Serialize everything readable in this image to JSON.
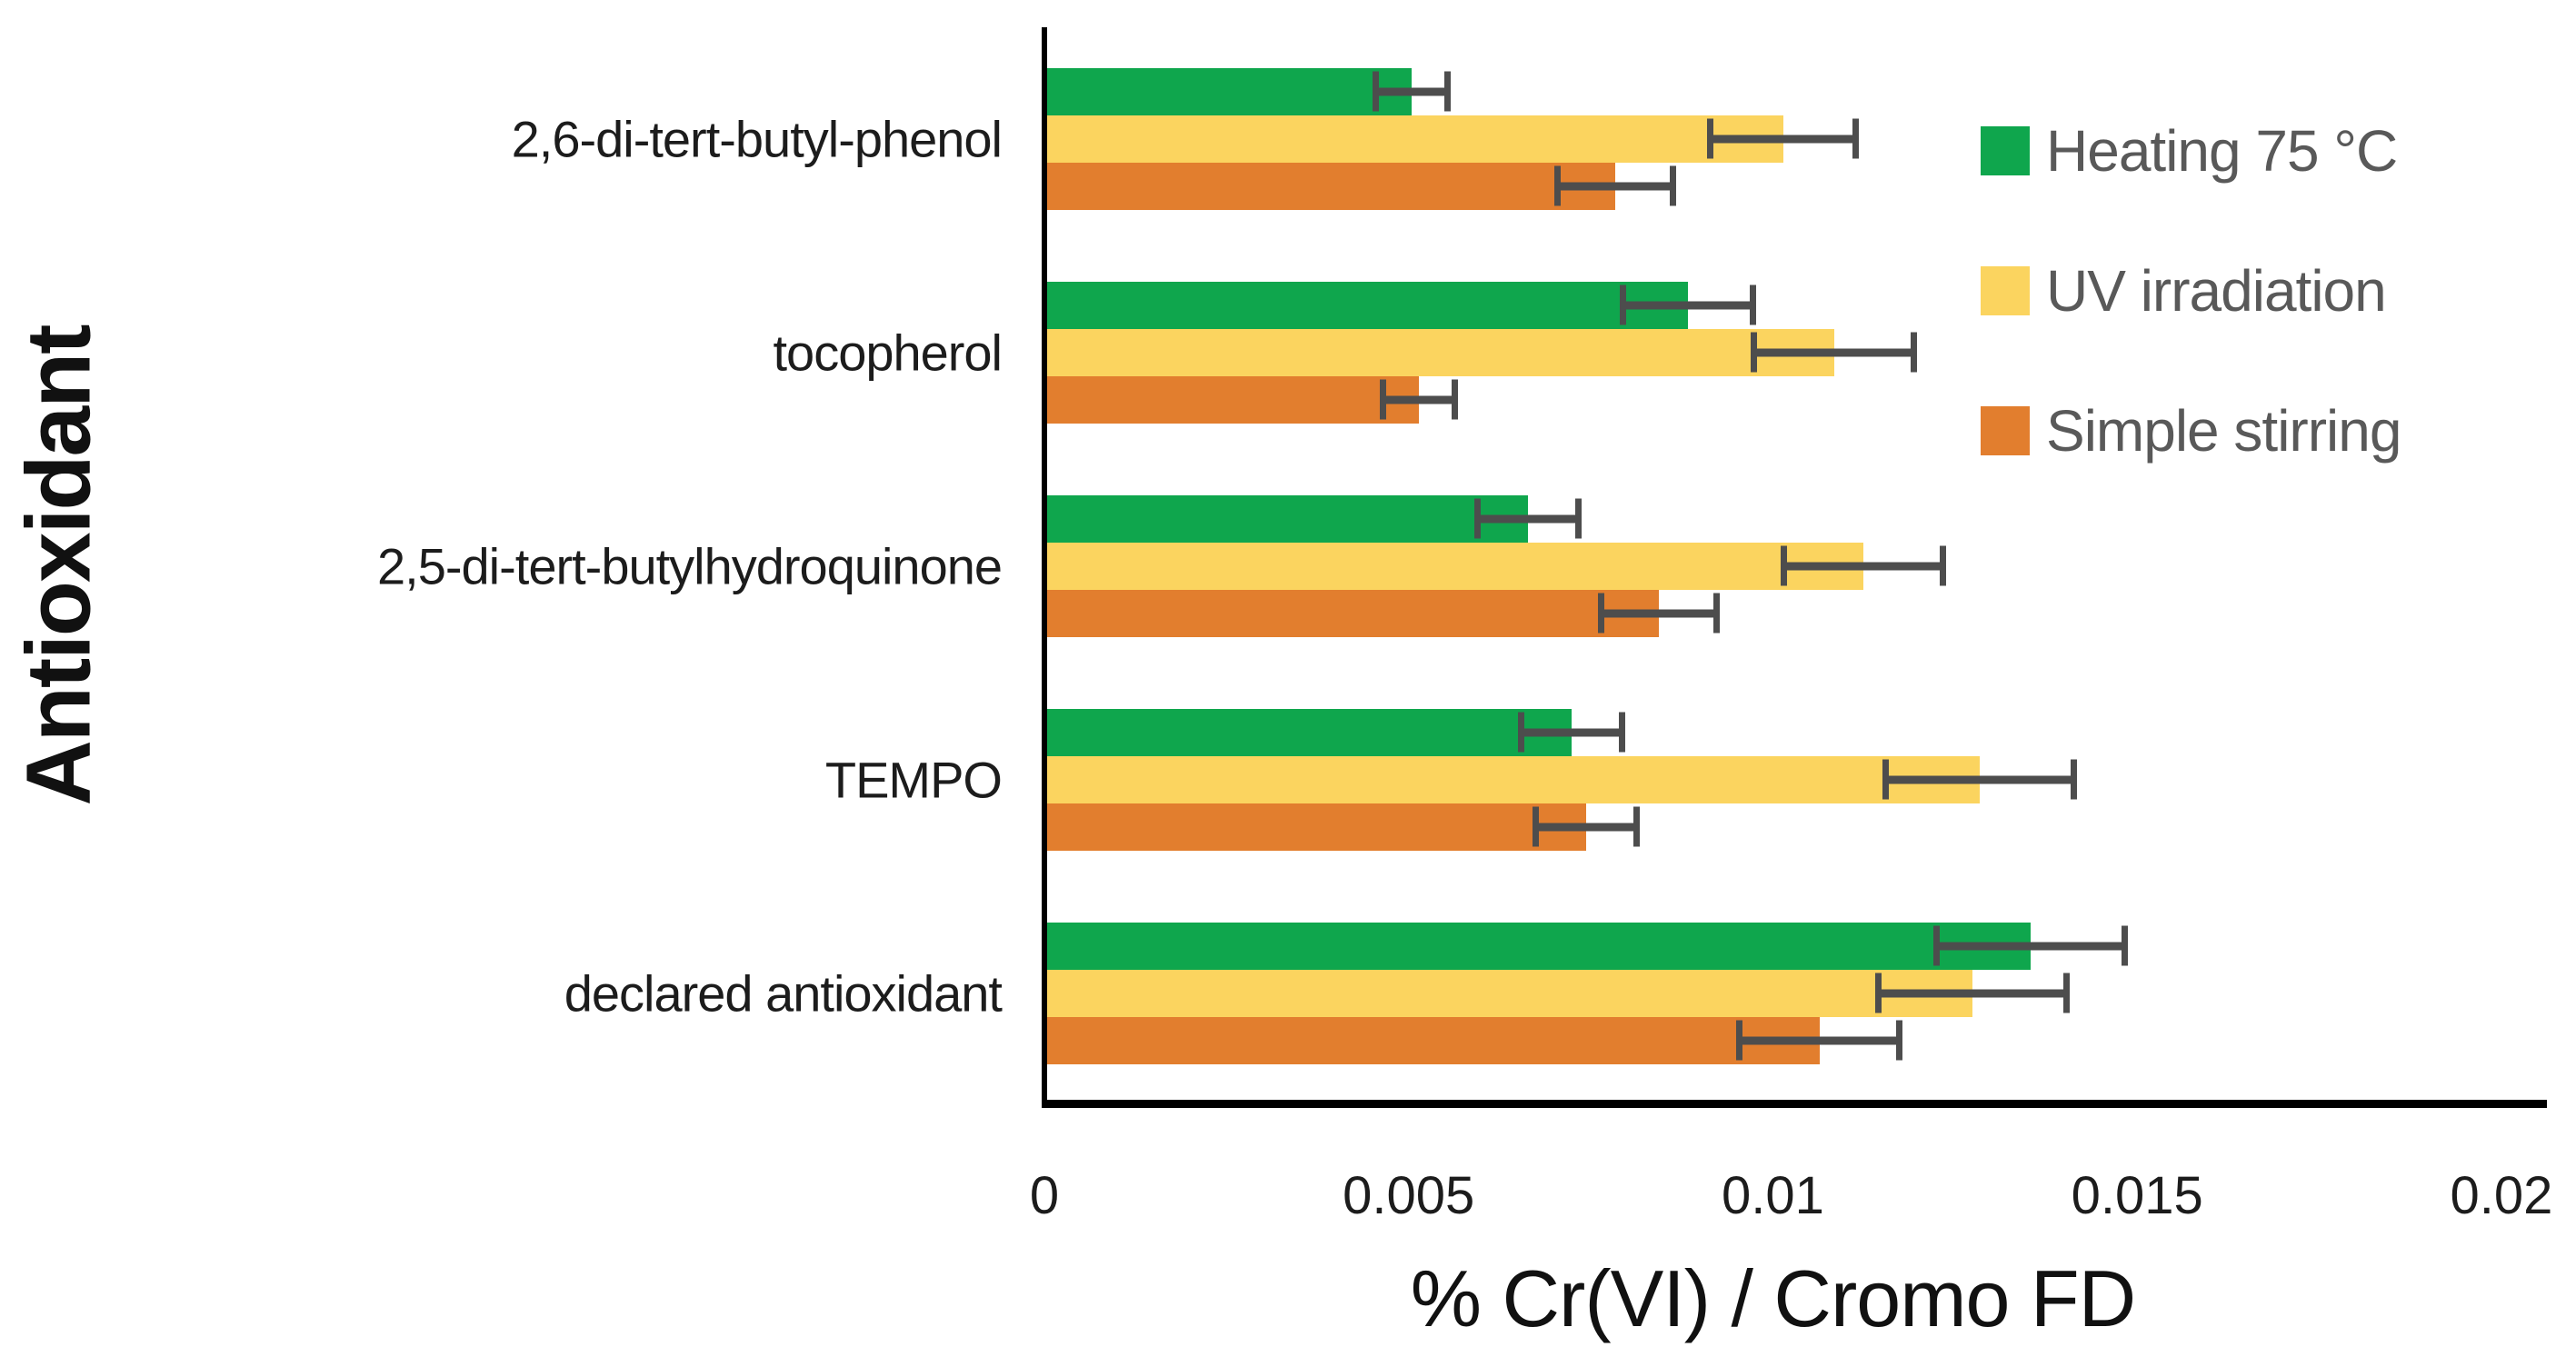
{
  "chart_data": {
    "type": "bar",
    "orientation": "horizontal",
    "xlabel": "% Cr(VI) / Cromo FD",
    "ylabel": "Antioxidant",
    "xlim": [
      0,
      0.02
    ],
    "x_ticks": [
      0,
      0.005,
      0.01,
      0.015,
      0.02
    ],
    "x_tick_labels": [
      "0",
      "0.005",
      "0.01",
      "0.015",
      "0.02"
    ],
    "grid": false,
    "error_bars": true,
    "legend_position": "top-right",
    "categories": [
      "2,6-di-tert-butyl-phenol",
      "tocopherol",
      "2,5-di-tert-butylhydroquinone",
      "TEMPO",
      "declared antioxidant"
    ],
    "series": [
      {
        "name": "Heating 75 °C",
        "color": "#0FA64D",
        "values": [
          0.005,
          0.0088,
          0.0066,
          0.0072,
          0.0135
        ],
        "errors": [
          0.0005,
          0.0009,
          0.0007,
          0.0007,
          0.0013
        ]
      },
      {
        "name": "UV irradiation",
        "color": "#FBD45F",
        "values": [
          0.0101,
          0.0108,
          0.0112,
          0.0128,
          0.0127
        ],
        "errors": [
          0.001,
          0.0011,
          0.0011,
          0.0013,
          0.0013
        ]
      },
      {
        "name": "Simple stirring",
        "color": "#E27E2E",
        "values": [
          0.0078,
          0.0051,
          0.0084,
          0.0074,
          0.0106
        ],
        "errors": [
          0.0008,
          0.0005,
          0.0008,
          0.0007,
          0.0011
        ]
      }
    ],
    "colors": {
      "axis": "#000000",
      "error_bar": "#4d4d4d",
      "legend_text": "#595959",
      "label_text": "#1c1c1c"
    }
  }
}
